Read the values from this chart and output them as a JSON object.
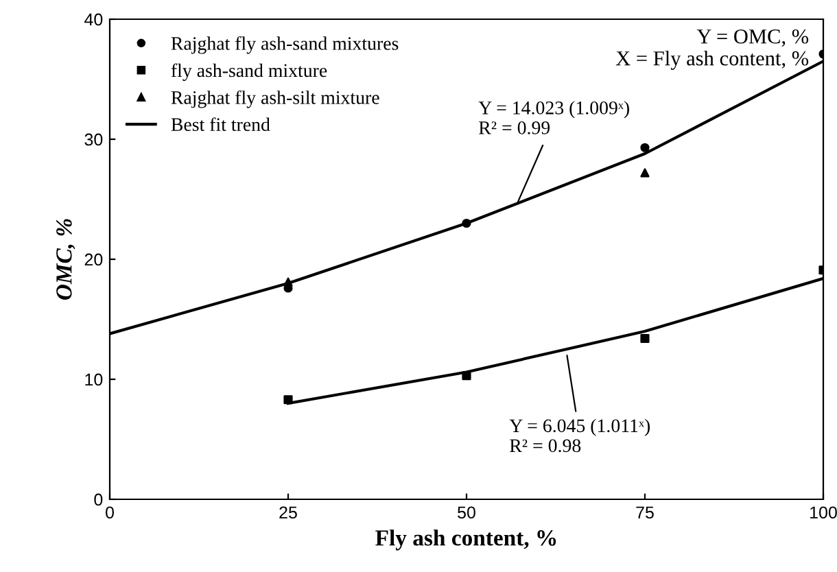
{
  "chart_data": {
    "type": "scatter",
    "xlabel": "Fly ash content, %",
    "ylabel": "OMC, %",
    "xlim": [
      0,
      100
    ],
    "ylim": [
      0,
      40
    ],
    "xticks": [
      0,
      25,
      50,
      75,
      100
    ],
    "yticks": [
      0,
      10,
      20,
      30,
      40
    ],
    "grid": false,
    "legend": "top left",
    "series": [
      {
        "name": "Rajghat fly ash-sand mixtures",
        "color": "#000000",
        "marker": "circle",
        "x": [
          25,
          50,
          75,
          100
        ],
        "values": [
          17.6,
          23.0,
          29.3,
          37.1
        ]
      },
      {
        "name": "fly ash-sand mixture",
        "color": "#000000",
        "marker": "square",
        "x": [
          25,
          50,
          75,
          100
        ],
        "values": [
          8.3,
          10.3,
          13.4,
          19.1
        ]
      },
      {
        "name": "Rajghat fly ash-silt mixture",
        "color": "#000000",
        "marker": "triangle",
        "x": [
          25,
          75
        ],
        "values": [
          18.1,
          27.2
        ]
      },
      {
        "name": "Best fit trend",
        "type": "line",
        "color": "#000000",
        "marker": "none",
        "x": [
          0,
          25,
          50,
          75,
          100
        ],
        "values": [
          13.8,
          18.0,
          23.0,
          28.8,
          36.5
        ]
      },
      {
        "type": "line",
        "color": "#000000",
        "marker": "none",
        "x": [
          25,
          50,
          75,
          100
        ],
        "values": [
          8.0,
          10.6,
          14.0,
          18.4
        ]
      }
    ],
    "annotations": [
      "Y = OMC, %\nX = Fly ash content, %",
      {
        "text": "Y = 14.023 (1.009ˣ)\nR² = 0.99",
        "x": 57,
        "y": 24.5
      },
      {
        "text": "Y = 6.045 (1.011ˣ)\nR² = 0.98",
        "x": 64,
        "y": 12.3
      }
    ]
  }
}
